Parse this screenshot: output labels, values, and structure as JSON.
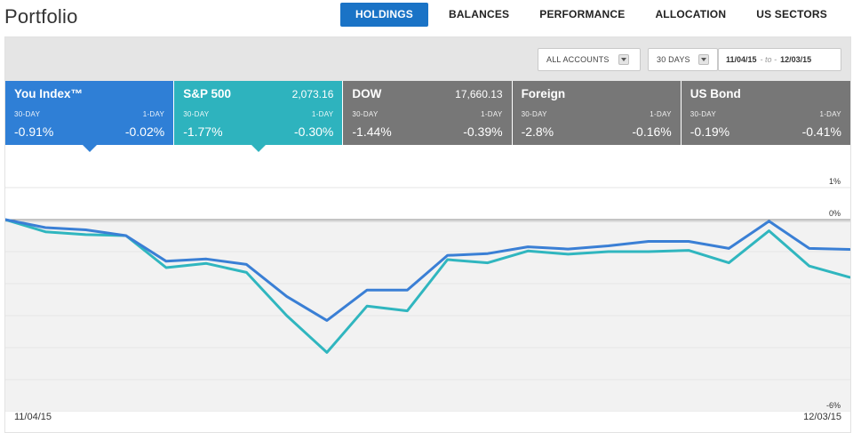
{
  "page": {
    "title": "Portfolio"
  },
  "nav": {
    "tabs": [
      {
        "label": "HOLDINGS",
        "active": true
      },
      {
        "label": "BALANCES",
        "active": false
      },
      {
        "label": "PERFORMANCE",
        "active": false
      },
      {
        "label": "ALLOCATION",
        "active": false
      },
      {
        "label": "US SECTORS",
        "active": false
      }
    ]
  },
  "toolbar": {
    "accounts_select": "ALL ACCOUNTS",
    "period_select": "30 DAYS",
    "date_from": "11/04/15",
    "date_to_word": "to",
    "date_to": "12/03/15"
  },
  "cards": [
    {
      "name": "You Index™",
      "price": "",
      "label_30": "30-DAY",
      "label_1": "1-DAY",
      "value_30": "-0.91%",
      "value_1": "-0.02%",
      "color": "#2f7fd6",
      "selected": true
    },
    {
      "name": "S&P 500",
      "price": "2,073.16",
      "label_30": "30-DAY",
      "label_1": "1-DAY",
      "value_30": "-1.77%",
      "value_1": "-0.30%",
      "color": "#2eb3be",
      "selected": true
    },
    {
      "name": "DOW",
      "price": "17,660.13",
      "label_30": "30-DAY",
      "label_1": "1-DAY",
      "value_30": "-1.44%",
      "value_1": "-0.39%",
      "color": "#777777",
      "selected": false
    },
    {
      "name": "Foreign",
      "price": "",
      "label_30": "30-DAY",
      "label_1": "1-DAY",
      "value_30": "-2.8%",
      "value_1": "-0.16%",
      "color": "#777777",
      "selected": false
    },
    {
      "name": "US Bond",
      "price": "",
      "label_30": "30-DAY",
      "label_1": "1-DAY",
      "value_30": "-0.19%",
      "value_1": "-0.41%",
      "color": "#777777",
      "selected": false
    }
  ],
  "chart_data": {
    "type": "line",
    "x_start_label": "11/04/15",
    "x_end_label": "12/03/15",
    "y_tick_labels": [
      "1%",
      "0%",
      "-6%"
    ],
    "ylim": [
      -6,
      1
    ],
    "series": [
      {
        "name": "You Index™",
        "color": "#3a7fd5",
        "values": [
          0.0,
          -0.25,
          -0.32,
          -0.5,
          -1.3,
          -1.23,
          -1.4,
          -2.4,
          -3.15,
          -2.2,
          -2.2,
          -1.12,
          -1.06,
          -0.85,
          -0.92,
          -0.82,
          -0.68,
          -0.68,
          -0.9,
          -0.05,
          -0.9,
          -0.93
        ]
      },
      {
        "name": "S&P 500",
        "color": "#30b6bf",
        "values": [
          0.0,
          -0.38,
          -0.47,
          -0.5,
          -1.5,
          -1.37,
          -1.65,
          -3.0,
          -4.15,
          -2.7,
          -2.85,
          -1.25,
          -1.35,
          -0.98,
          -1.08,
          -1.0,
          -1.0,
          -0.96,
          -1.35,
          -0.35,
          -1.45,
          -1.8
        ]
      }
    ]
  }
}
